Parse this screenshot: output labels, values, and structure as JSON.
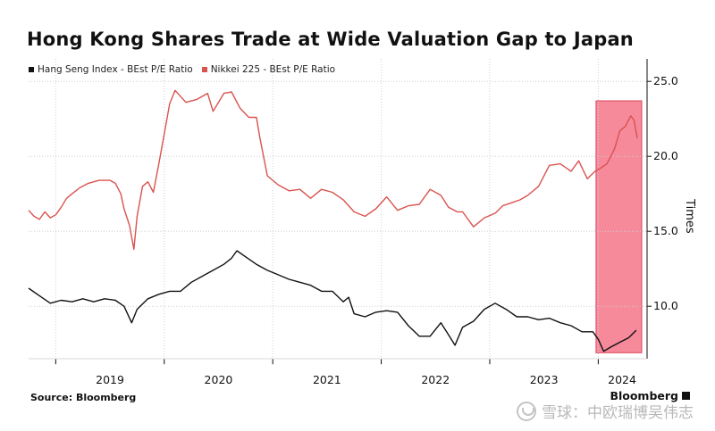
{
  "title": "Hong Kong Shares Trade at Wide Valuation Gap to Japan",
  "source": "Source: Bloomberg",
  "brand": "Bloomberg",
  "watermark": "雪球：中欧瑞博吴伟志",
  "colors": {
    "hsi": "#111111",
    "nikkei": "#d9534f",
    "highlight": "#f4768a"
  },
  "chart_data": {
    "type": "line",
    "title": "Hong Kong Shares Trade at Wide Valuation Gap to Japan",
    "xlabel": "",
    "ylabel": "Times",
    "ylim": [
      6.5,
      26.5
    ],
    "yticks": [
      10.0,
      15.0,
      20.0,
      25.0
    ],
    "ytick_labels": [
      "10.0",
      "15.0",
      "20.0",
      "25.0"
    ],
    "xticks": [
      2019,
      2020,
      2021,
      2022,
      2023,
      2024
    ],
    "xtick_labels": [
      "2019",
      "2020",
      "2021",
      "2022",
      "2023",
      "2024"
    ],
    "xlim": [
      2018.75,
      2024.45
    ],
    "grid": true,
    "legend_position": "top-left",
    "y_axis_side": "right",
    "highlight_region": {
      "x_range": [
        2023.98,
        2024.4
      ],
      "y_range": [
        6.9,
        23.7
      ]
    },
    "series": [
      {
        "name": "Hang Seng Index - BEst P/E Ratio",
        "color": "#111111",
        "x": [
          2018.75,
          2018.85,
          2018.95,
          2019.05,
          2019.15,
          2019.25,
          2019.35,
          2019.45,
          2019.55,
          2019.63,
          2019.7,
          2019.75,
          2019.85,
          2019.95,
          2020.05,
          2020.15,
          2020.25,
          2020.35,
          2020.45,
          2020.55,
          2020.62,
          2020.67,
          2020.75,
          2020.85,
          2020.95,
          2021.05,
          2021.15,
          2021.25,
          2021.35,
          2021.45,
          2021.55,
          2021.65,
          2021.7,
          2021.75,
          2021.85,
          2021.95,
          2022.05,
          2022.15,
          2022.25,
          2022.35,
          2022.45,
          2022.55,
          2022.62,
          2022.68,
          2022.75,
          2022.85,
          2022.95,
          2023.05,
          2023.15,
          2023.25,
          2023.35,
          2023.45,
          2023.55,
          2023.65,
          2023.75,
          2023.85,
          2023.95,
          2024.0,
          2024.05,
          2024.12,
          2024.2,
          2024.28,
          2024.35
        ],
        "y": [
          11.2,
          10.7,
          10.2,
          10.4,
          10.3,
          10.5,
          10.3,
          10.5,
          10.4,
          10.0,
          8.9,
          9.8,
          10.5,
          10.8,
          11.0,
          11.0,
          11.6,
          12.0,
          12.4,
          12.8,
          13.2,
          13.7,
          13.3,
          12.8,
          12.4,
          12.1,
          11.8,
          11.6,
          11.4,
          11.0,
          11.0,
          10.3,
          10.6,
          9.5,
          9.3,
          9.6,
          9.7,
          9.6,
          8.7,
          8.0,
          8.0,
          8.9,
          8.1,
          7.4,
          8.6,
          9.0,
          9.8,
          10.2,
          9.8,
          9.3,
          9.3,
          9.1,
          9.2,
          8.9,
          8.7,
          8.3,
          8.3,
          7.8,
          7.0,
          7.3,
          7.6,
          7.9,
          8.4
        ]
      },
      {
        "name": "Nikkei 225 - BEst P/E Ratio",
        "color": "#d9534f",
        "x": [
          2018.75,
          2018.8,
          2018.85,
          2018.9,
          2018.95,
          2019.0,
          2019.05,
          2019.1,
          2019.15,
          2019.22,
          2019.3,
          2019.4,
          2019.5,
          2019.55,
          2019.6,
          2019.63,
          2019.68,
          2019.72,
          2019.75,
          2019.8,
          2019.85,
          2019.9,
          2019.95,
          2020.0,
          2020.05,
          2020.1,
          2020.2,
          2020.3,
          2020.4,
          2020.45,
          2020.55,
          2020.62,
          2020.7,
          2020.78,
          2020.85,
          2020.88,
          2020.95,
          2021.05,
          2021.15,
          2021.25,
          2021.35,
          2021.45,
          2021.55,
          2021.65,
          2021.75,
          2021.85,
          2021.95,
          2022.05,
          2022.15,
          2022.25,
          2022.35,
          2022.45,
          2022.55,
          2022.62,
          2022.7,
          2022.75,
          2022.85,
          2022.95,
          2023.05,
          2023.12,
          2023.2,
          2023.28,
          2023.35,
          2023.45,
          2023.55,
          2023.65,
          2023.75,
          2023.82,
          2023.9,
          2023.97,
          2024.02,
          2024.08,
          2024.15,
          2024.2,
          2024.25,
          2024.3,
          2024.33,
          2024.36
        ],
        "y": [
          16.4,
          16.0,
          15.8,
          16.3,
          15.9,
          16.1,
          16.6,
          17.2,
          17.5,
          17.9,
          18.2,
          18.4,
          18.4,
          18.2,
          17.5,
          16.5,
          15.4,
          13.8,
          16.0,
          18.0,
          18.3,
          17.6,
          19.5,
          21.5,
          23.5,
          24.4,
          23.6,
          23.8,
          24.2,
          23.0,
          24.2,
          24.3,
          23.2,
          22.6,
          22.6,
          21.3,
          18.7,
          18.1,
          17.7,
          17.8,
          17.2,
          17.8,
          17.6,
          17.1,
          16.3,
          16.0,
          16.5,
          17.3,
          16.4,
          16.7,
          16.8,
          17.8,
          17.4,
          16.6,
          16.3,
          16.3,
          15.3,
          15.9,
          16.2,
          16.7,
          16.9,
          17.1,
          17.4,
          18.0,
          19.4,
          19.5,
          19.0,
          19.7,
          18.5,
          19.0,
          19.2,
          19.5,
          20.5,
          21.7,
          22.0,
          22.7,
          22.4,
          21.2
        ]
      }
    ]
  }
}
